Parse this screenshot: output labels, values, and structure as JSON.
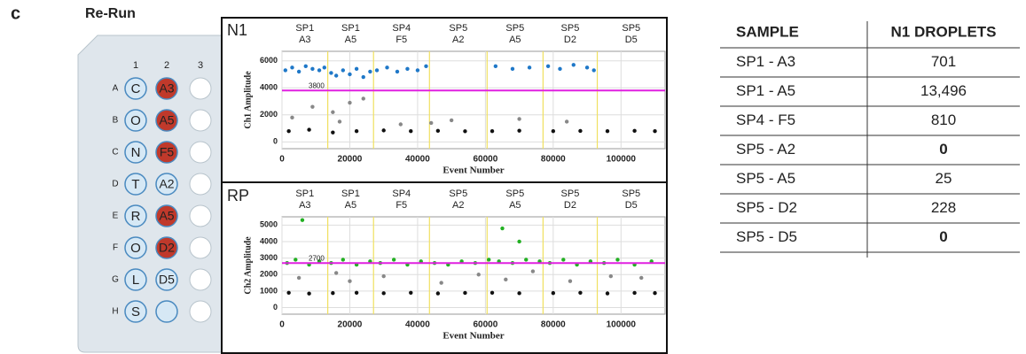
{
  "panel_label": "c",
  "plate": {
    "title": "Re-Run",
    "columns": [
      "1",
      "2",
      "3"
    ],
    "rows": [
      {
        "letter": "A",
        "col1": "C",
        "col2": "A3",
        "col2_fill": "#c0392b"
      },
      {
        "letter": "B",
        "col1": "O",
        "col2": "A5",
        "col2_fill": "#c0392b"
      },
      {
        "letter": "C",
        "col1": "N",
        "col2": "F5",
        "col2_fill": "#c0392b"
      },
      {
        "letter": "D",
        "col1": "T",
        "col2": "A2",
        "col2_fill": "#d6e8f5"
      },
      {
        "letter": "E",
        "col1": "R",
        "col2": "A5",
        "col2_fill": "#c0392b"
      },
      {
        "letter": "F",
        "col1": "O",
        "col2": "D2",
        "col2_fill": "#c0392b"
      },
      {
        "letter": "G",
        "col1": "L",
        "col2": "D5",
        "col2_fill": "#d6e8f5"
      },
      {
        "letter": "H",
        "col1": "S",
        "col2": null,
        "col2_fill": "#d6e8f5"
      }
    ]
  },
  "chart_data": [
    {
      "type": "scatter",
      "title": "N1",
      "title_color": "#1e7ec8",
      "xlabel": "Event Number",
      "ylabel": "Ch1 Amplitude",
      "xlim": [
        0,
        113000
      ],
      "xticks": [
        0,
        20000,
        40000,
        60000,
        80000,
        100000
      ],
      "ylim": [
        -500,
        6700
      ],
      "yticks": [
        0,
        2000,
        4000,
        6000
      ],
      "grid": true,
      "threshold": {
        "value": 3800,
        "label": "3800"
      },
      "threshold_color": "#e020e0",
      "dividers": [
        13500,
        27000,
        43500,
        60500,
        77000,
        93000
      ],
      "divider_color": "#f0e060",
      "well_labels": [
        [
          "SP1",
          "A3"
        ],
        [
          "SP1",
          "A5"
        ],
        [
          "SP4",
          "F5"
        ],
        [
          "SP5",
          "A2"
        ],
        [
          "SP5",
          "A5"
        ],
        [
          "SP5",
          "D2"
        ],
        [
          "SP5",
          "D5"
        ]
      ],
      "series": [
        {
          "color": "#1f78c8",
          "x": [
            1000,
            3000,
            5000,
            7000,
            9000,
            11000,
            12500,
            14500,
            16000,
            18000,
            20000,
            22000,
            24000,
            26000,
            28000,
            31000,
            34000,
            37000,
            40000,
            42500,
            63000,
            68000,
            73000,
            78500,
            82000,
            86000,
            90000,
            92000
          ],
          "values": [
            5300,
            5500,
            5200,
            5600,
            5400,
            5300,
            5500,
            5100,
            4900,
            5300,
            5000,
            5400,
            4800,
            5200,
            5300,
            5500,
            5200,
            5400,
            5300,
            5600,
            5600,
            5400,
            5500,
            5600,
            5400,
            5700,
            5500,
            5300
          ]
        },
        {
          "color": "#888888",
          "x": [
            3000,
            9000,
            17000,
            24000,
            35000,
            50000,
            15000,
            20000,
            44000,
            70000,
            84000
          ],
          "values": [
            1800,
            2600,
            1500,
            3200,
            1300,
            1600,
            2200,
            2900,
            1400,
            1700,
            1500
          ]
        },
        {
          "color": "#111111",
          "x": [
            2000,
            8000,
            15000,
            22000,
            30000,
            38000,
            46000,
            54000,
            62000,
            70000,
            80000,
            88000,
            96000,
            104000,
            110000
          ],
          "values": [
            800,
            900,
            700,
            800,
            850,
            800,
            820,
            790,
            800,
            830,
            800,
            810,
            800,
            820,
            800
          ]
        }
      ]
    },
    {
      "type": "scatter",
      "title": "RP",
      "title_color": "#2db82d",
      "xlabel": "Event Number",
      "ylabel": "Ch2 Amplitude",
      "xlim": [
        0,
        113000
      ],
      "xticks": [
        0,
        20000,
        40000,
        60000,
        80000,
        100000
      ],
      "ylim": [
        -400,
        5500
      ],
      "yticks": [
        0,
        1000,
        2000,
        3000,
        4000,
        5000
      ],
      "grid": true,
      "threshold": {
        "value": 2700,
        "label": "2700"
      },
      "threshold_color": "#e020e0",
      "dividers": [
        13500,
        27000,
        43500,
        60500,
        77000,
        93000
      ],
      "divider_color": "#f0e060",
      "well_labels": [
        [
          "SP1",
          "A3"
        ],
        [
          "SP1",
          "A5"
        ],
        [
          "SP4",
          "F5"
        ],
        [
          "SP5",
          "A2"
        ],
        [
          "SP5",
          "A5"
        ],
        [
          "SP5",
          "D2"
        ],
        [
          "SP5",
          "D5"
        ]
      ],
      "series": [
        {
          "color": "#22b022",
          "x": [
            1500,
            4000,
            6000,
            8000,
            11000,
            14500,
            18000,
            22000,
            26000,
            29000,
            33000,
            37000,
            41000,
            45000,
            49000,
            53000,
            57000,
            61000,
            64000,
            65000,
            68000,
            70000,
            72000,
            76000,
            79000,
            83000,
            87000,
            91000,
            95000,
            99000,
            104000,
            109000
          ],
          "values": [
            2700,
            2900,
            5300,
            2600,
            2800,
            2700,
            2900,
            2600,
            2800,
            2700,
            2900,
            2600,
            2800,
            2700,
            2600,
            2800,
            2700,
            2900,
            2800,
            4800,
            2700,
            4000,
            2900,
            2800,
            2700,
            2900,
            2600,
            2800,
            2700,
            2900,
            2600,
            2800
          ]
        },
        {
          "color": "#888888",
          "x": [
            5000,
            16000,
            20000,
            30000,
            47000,
            58000,
            66000,
            74000,
            85000,
            97000,
            106000
          ],
          "values": [
            1800,
            2100,
            1600,
            1900,
            1500,
            2000,
            1700,
            2200,
            1600,
            1900,
            1800
          ]
        },
        {
          "color": "#111111",
          "x": [
            2000,
            8000,
            15000,
            22000,
            30000,
            38000,
            46000,
            54000,
            62000,
            70000,
            80000,
            88000,
            96000,
            104000,
            110000
          ],
          "values": [
            900,
            850,
            880,
            900,
            870,
            900,
            860,
            890,
            900,
            870,
            880,
            900,
            860,
            890,
            880
          ]
        }
      ]
    }
  ],
  "table": {
    "header": [
      "SAMPLE",
      "N1 DROPLETS"
    ],
    "rows": [
      {
        "sample": "SP1 - A3",
        "droplets": "701",
        "color": "#222222"
      },
      {
        "sample": "SP1 - A5",
        "droplets": "13,496",
        "color": "#222222"
      },
      {
        "sample": "SP4 - F5",
        "droplets": "810",
        "color": "#222222"
      },
      {
        "sample": "SP5 - A2",
        "droplets": "0",
        "color": "#c0392b"
      },
      {
        "sample": "SP5 - A5",
        "droplets": "25",
        "color": "#222222"
      },
      {
        "sample": "SP5 - D2",
        "droplets": "228",
        "color": "#222222"
      },
      {
        "sample": "SP5 - D5",
        "droplets": "0",
        "color": "#c0392b"
      }
    ]
  }
}
